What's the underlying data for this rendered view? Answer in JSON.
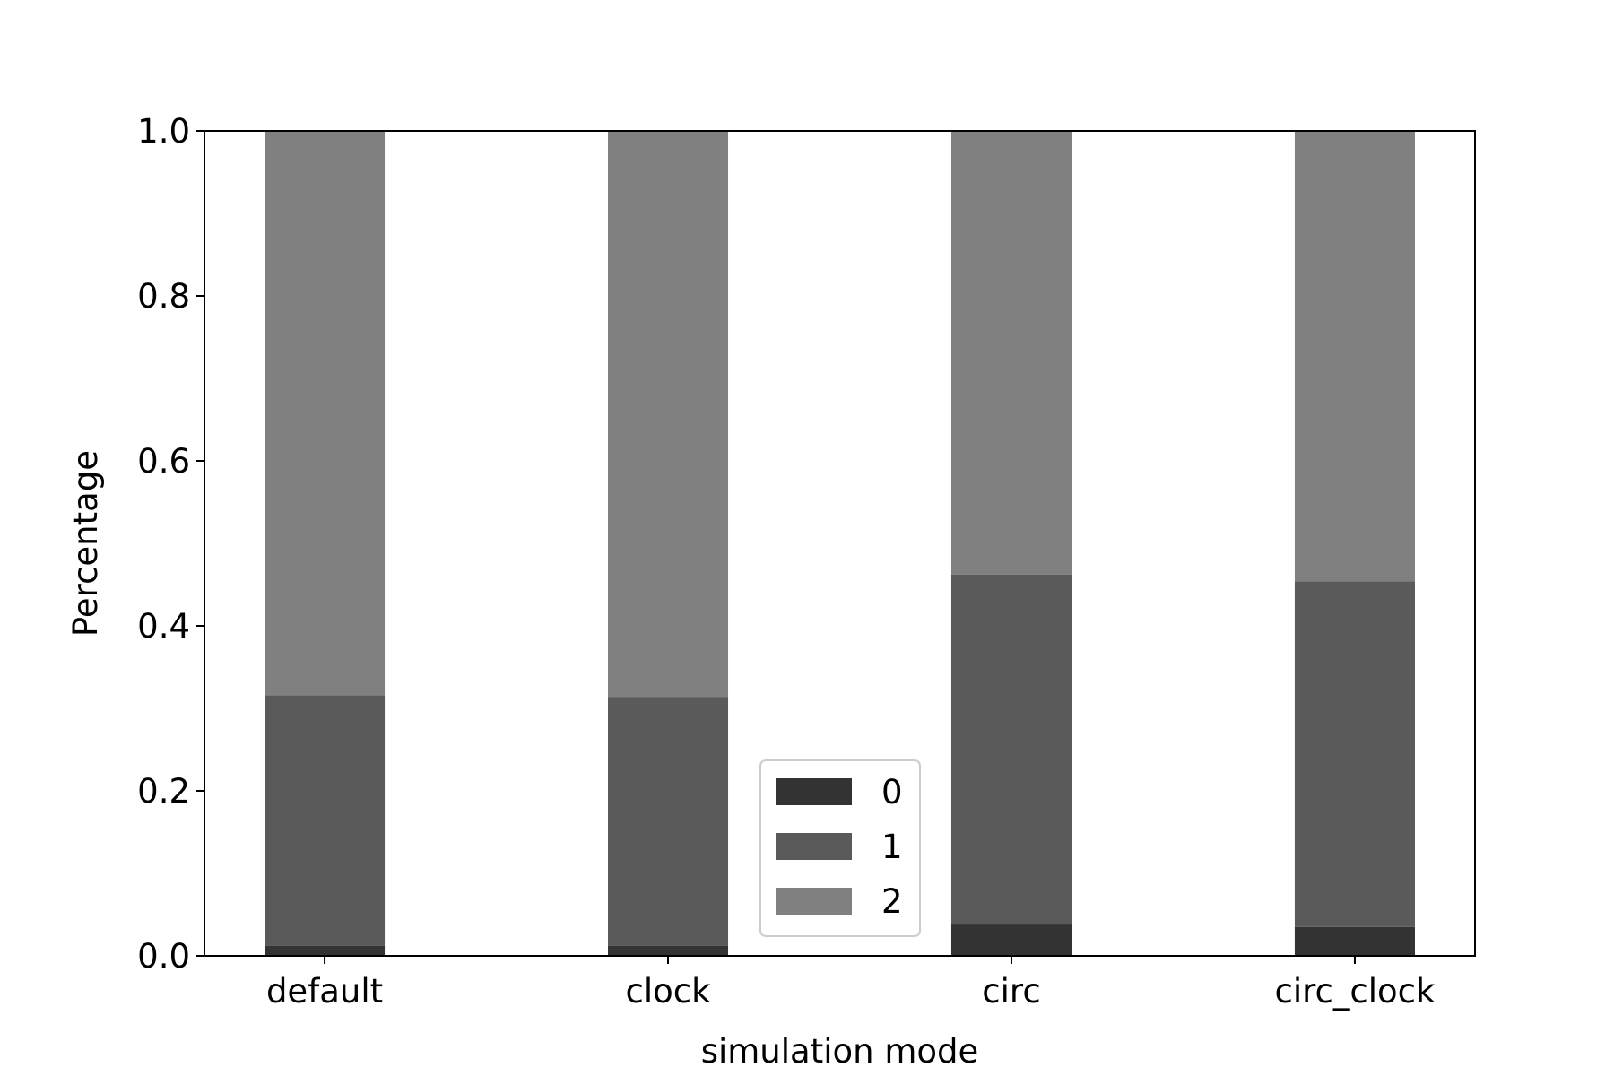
{
  "chart_data": {
    "type": "bar",
    "stacked": true,
    "categories": [
      "default",
      "clock",
      "circ",
      "circ_clock"
    ],
    "series": [
      {
        "name": "0",
        "color": "#333333",
        "values": [
          0.012,
          0.012,
          0.038,
          0.035
        ]
      },
      {
        "name": "1",
        "color": "#5a5a5a",
        "values": [
          0.304,
          0.302,
          0.424,
          0.419
        ]
      },
      {
        "name": "2",
        "color": "#808080",
        "values": [
          0.684,
          0.686,
          0.538,
          0.546
        ]
      }
    ],
    "xlabel": "simulation mode",
    "ylabel": "Percentage",
    "ylim": [
      0,
      1.0
    ],
    "yticks": [
      "0.0",
      "0.2",
      "0.4",
      "0.6",
      "0.8",
      "1.0"
    ],
    "ytick_values": [
      0,
      0.2,
      0.4,
      0.6,
      0.8,
      1.0
    ],
    "grid": false,
    "legend_position": "lower center"
  }
}
